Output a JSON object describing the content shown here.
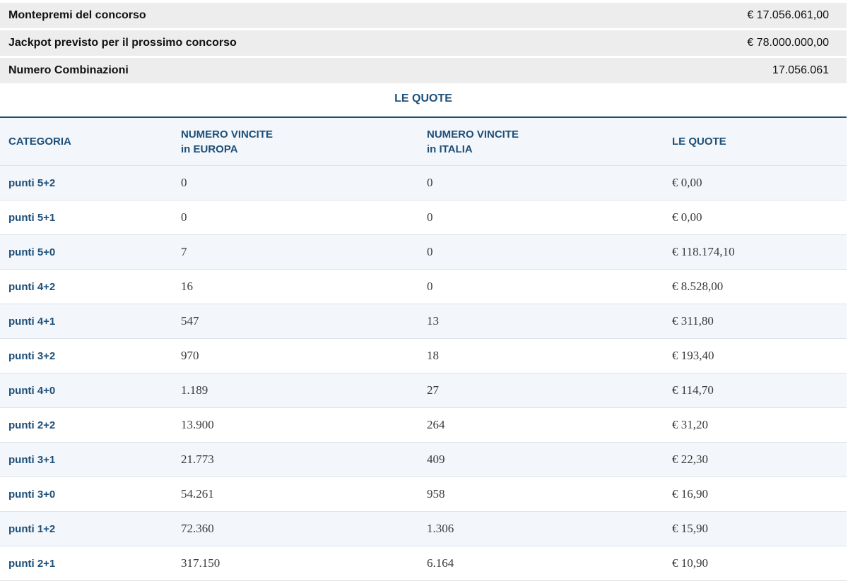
{
  "summary": [
    {
      "label": "Montepremi del concorso",
      "value": "€ 17.056.061,00"
    },
    {
      "label": "Jackpot previsto per il prossimo concorso",
      "value": "€ 78.000.000,00"
    },
    {
      "label": "Numero Combinazioni",
      "value": "17.056.061"
    }
  ],
  "table": {
    "title": "LE QUOTE",
    "headers": {
      "categoria": "CATEGORIA",
      "europa_line1": "NUMERO VINCITE",
      "europa_line2": "in EUROPA",
      "italia_line1": "NUMERO VINCITE",
      "italia_line2": "in ITALIA",
      "quote": "LE QUOTE"
    },
    "rows": [
      {
        "categoria": "punti 5+2",
        "europa": "0",
        "italia": "0",
        "quota": "€ 0,00"
      },
      {
        "categoria": "punti 5+1",
        "europa": "0",
        "italia": "0",
        "quota": "€ 0,00"
      },
      {
        "categoria": "punti 5+0",
        "europa": "7",
        "italia": "0",
        "quota": "€ 118.174,10"
      },
      {
        "categoria": "punti 4+2",
        "europa": "16",
        "italia": "0",
        "quota": "€ 8.528,00"
      },
      {
        "categoria": "punti 4+1",
        "europa": "547",
        "italia": "13",
        "quota": "€ 311,80"
      },
      {
        "categoria": "punti 3+2",
        "europa": "970",
        "italia": "18",
        "quota": "€ 193,40"
      },
      {
        "categoria": "punti 4+0",
        "europa": "1.189",
        "italia": "27",
        "quota": "€ 114,70"
      },
      {
        "categoria": "punti 2+2",
        "europa": "13.900",
        "italia": "264",
        "quota": "€ 31,20"
      },
      {
        "categoria": "punti 3+1",
        "europa": "21.773",
        "italia": "409",
        "quota": "€ 22,30"
      },
      {
        "categoria": "punti 3+0",
        "europa": "54.261",
        "italia": "958",
        "quota": "€ 16,90"
      },
      {
        "categoria": "punti 1+2",
        "europa": "72.360",
        "italia": "1.306",
        "quota": "€ 15,90"
      },
      {
        "categoria": "punti 2+1",
        "europa": "317.150",
        "italia": "6.164",
        "quota": "€ 10,90"
      }
    ]
  }
}
